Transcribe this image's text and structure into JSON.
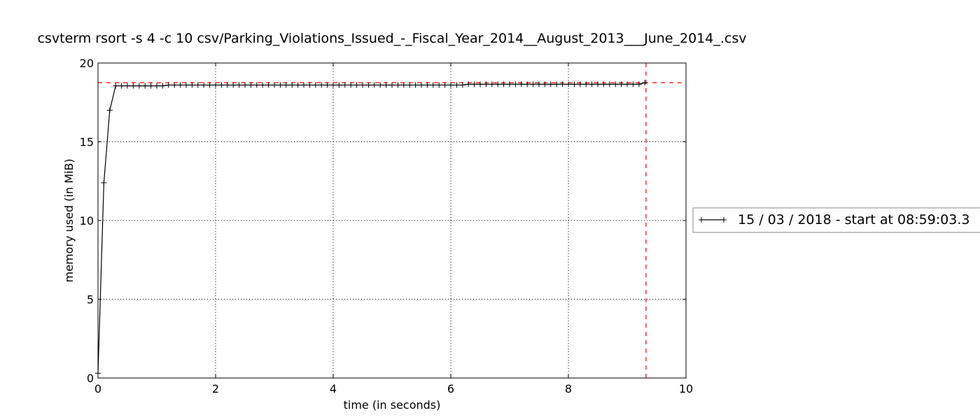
{
  "chart_data": {
    "type": "line",
    "title": "csvterm rsort -s 4 -c 10 csv/Parking_Violations_Issued_-_Fiscal_Year_2014__August_2013___June_2014_.csv",
    "xlabel": "time (in seconds)",
    "ylabel": "memory used (in MiB)",
    "xlim": [
      0,
      10
    ],
    "ylim": [
      0,
      20
    ],
    "x_ticks": [
      0,
      2,
      4,
      6,
      8,
      10
    ],
    "y_ticks": [
      0,
      5,
      10,
      15,
      20
    ],
    "grid": true,
    "legend_position": "right",
    "series": [
      {
        "name": "15 / 03 / 2018 - start at 08:59:03.3",
        "color": "#000000",
        "marker": "+",
        "x": [
          0.0,
          0.1,
          0.2,
          0.3,
          0.4,
          0.5,
          0.6,
          0.7,
          0.8,
          0.9,
          1.0,
          1.1,
          1.2,
          1.3,
          1.4,
          1.5,
          1.6,
          1.7,
          1.8,
          1.9,
          2.0,
          2.1,
          2.2,
          2.3,
          2.4,
          2.5,
          2.6,
          2.7,
          2.8,
          2.9,
          3.0,
          3.1,
          3.2,
          3.3,
          3.4,
          3.5,
          3.6,
          3.7,
          3.8,
          3.9,
          4.0,
          4.1,
          4.2,
          4.3,
          4.4,
          4.5,
          4.6,
          4.7,
          4.8,
          4.9,
          5.0,
          5.1,
          5.2,
          5.3,
          5.4,
          5.5,
          5.6,
          5.7,
          5.8,
          5.9,
          6.0,
          6.1,
          6.2,
          6.3,
          6.4,
          6.5,
          6.6,
          6.7,
          6.8,
          6.9,
          7.0,
          7.1,
          7.2,
          7.3,
          7.4,
          7.5,
          7.6,
          7.7,
          7.8,
          7.9,
          8.0,
          8.1,
          8.2,
          8.3,
          8.4,
          8.5,
          8.6,
          8.7,
          8.8,
          8.9,
          9.0,
          9.1,
          9.2,
          9.3
        ],
        "y": [
          0.3,
          12.4,
          17.0,
          18.55,
          18.55,
          18.55,
          18.55,
          18.55,
          18.55,
          18.55,
          18.55,
          18.55,
          18.6,
          18.6,
          18.6,
          18.6,
          18.6,
          18.6,
          18.6,
          18.6,
          18.6,
          18.6,
          18.6,
          18.6,
          18.6,
          18.6,
          18.6,
          18.6,
          18.6,
          18.6,
          18.6,
          18.6,
          18.6,
          18.6,
          18.6,
          18.6,
          18.6,
          18.6,
          18.6,
          18.6,
          18.6,
          18.6,
          18.6,
          18.6,
          18.6,
          18.6,
          18.6,
          18.6,
          18.6,
          18.6,
          18.6,
          18.6,
          18.6,
          18.6,
          18.6,
          18.6,
          18.6,
          18.6,
          18.6,
          18.6,
          18.6,
          18.6,
          18.6,
          18.65,
          18.65,
          18.65,
          18.65,
          18.65,
          18.65,
          18.65,
          18.65,
          18.65,
          18.65,
          18.65,
          18.65,
          18.65,
          18.65,
          18.65,
          18.65,
          18.65,
          18.65,
          18.65,
          18.65,
          18.65,
          18.65,
          18.65,
          18.65,
          18.65,
          18.65,
          18.65,
          18.65,
          18.65,
          18.65,
          18.75
        ]
      }
    ],
    "reference_lines": [
      {
        "orientation": "horizontal",
        "value": 18.75,
        "color": "#ff0000",
        "style": "dashed"
      },
      {
        "orientation": "vertical",
        "value": 9.32,
        "color": "#ff0000",
        "style": "dashed"
      }
    ]
  }
}
